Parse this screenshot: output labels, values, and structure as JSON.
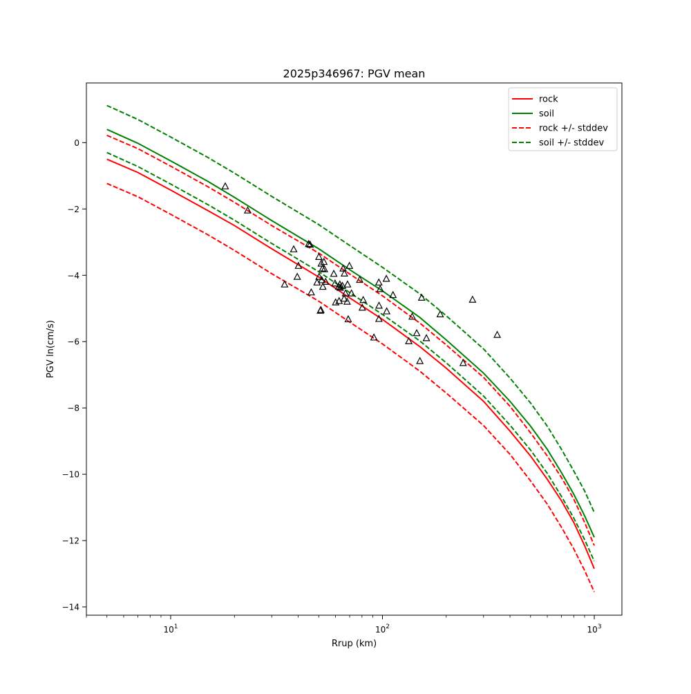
{
  "chart_data": {
    "type": "line",
    "title": "2025p346967: PGV mean",
    "xlabel": "Rrup (km)",
    "ylabel": "PGV ln(cm/s)",
    "xscale": "log",
    "xlim": [
      4,
      1350
    ],
    "ylim": [
      -14.25,
      1.8
    ],
    "grid": false,
    "legend_position": "top-right",
    "x_ticks": [
      {
        "value": 10,
        "base": "10",
        "exp": "1"
      },
      {
        "value": 100,
        "base": "10",
        "exp": "2"
      },
      {
        "value": 1000,
        "base": "10",
        "exp": "3"
      }
    ],
    "y_ticks": [
      0,
      -2,
      -4,
      -6,
      -8,
      -10,
      -12,
      -14
    ],
    "y_tick_labels": [
      "0",
      "−2",
      "−4",
      "−6",
      "−8",
      "−10",
      "−12",
      "−14"
    ],
    "curve_x": [
      5,
      7,
      10,
      15,
      20,
      30,
      50,
      70,
      100,
      150,
      200,
      300,
      400,
      500,
      600,
      700,
      800,
      900,
      1000
    ],
    "series": [
      {
        "name": "rock",
        "color": "#ff0000",
        "dash": "solid",
        "values": [
          -0.5,
          -0.9,
          -1.43,
          -2.05,
          -2.5,
          -3.2,
          -4.05,
          -4.68,
          -5.33,
          -6.15,
          -6.8,
          -7.8,
          -8.7,
          -9.45,
          -10.15,
          -10.8,
          -11.45,
          -12.15,
          -12.85
        ]
      },
      {
        "name": "soil",
        "color": "#008000",
        "dash": "solid",
        "values": [
          0.4,
          -0.02,
          -0.55,
          -1.17,
          -1.65,
          -2.35,
          -3.2,
          -3.83,
          -4.47,
          -5.27,
          -5.95,
          -6.95,
          -7.8,
          -8.55,
          -9.25,
          -9.95,
          -10.6,
          -11.25,
          -11.9
        ]
      },
      {
        "name": "rock +/- stddev",
        "color": "#ff0000",
        "dash": "dashed",
        "values": [
          0.22,
          -0.18,
          -0.71,
          -1.33,
          -1.8,
          -2.5,
          -3.33,
          -3.96,
          -4.62,
          -5.44,
          -6.1,
          -7.08,
          -7.95,
          -8.75,
          -9.45,
          -10.1,
          -10.75,
          -11.45,
          -12.15
        ]
      },
      {
        "name": "",
        "color": "#ff0000",
        "dash": "dashed",
        "values": [
          -1.23,
          -1.63,
          -2.16,
          -2.78,
          -3.25,
          -3.95,
          -4.78,
          -5.41,
          -6.07,
          -6.89,
          -7.55,
          -8.53,
          -9.4,
          -10.2,
          -10.9,
          -11.6,
          -12.25,
          -12.9,
          -13.55
        ]
      },
      {
        "name": "soil +/- stddev",
        "color": "#008000",
        "dash": "dashed",
        "values": [
          1.12,
          0.7,
          0.17,
          -0.45,
          -0.92,
          -1.62,
          -2.47,
          -3.1,
          -3.76,
          -4.56,
          -5.22,
          -6.22,
          -7.1,
          -7.85,
          -8.55,
          -9.25,
          -9.9,
          -10.5,
          -11.15
        ]
      },
      {
        "name": "",
        "color": "#008000",
        "dash": "dashed",
        "values": [
          -0.3,
          -0.72,
          -1.25,
          -1.87,
          -2.34,
          -3.04,
          -3.89,
          -4.52,
          -5.18,
          -5.98,
          -6.64,
          -7.64,
          -8.52,
          -9.27,
          -9.97,
          -10.67,
          -11.32,
          -11.97,
          -12.62
        ]
      }
    ],
    "observations": {
      "marker": "triangle",
      "points": [
        [
          18.1,
          -1.32
        ],
        [
          23.1,
          -2.05
        ],
        [
          34.5,
          -4.28
        ],
        [
          38.1,
          -3.22
        ],
        [
          39.6,
          -4.05
        ],
        [
          40.1,
          -3.72
        ],
        [
          44.8,
          -3.06
        ],
        [
          45.5,
          -3.08
        ],
        [
          46.1,
          -4.52
        ],
        [
          49.1,
          -4.22
        ],
        [
          50.1,
          -3.45
        ],
        [
          50.2,
          -4.05
        ],
        [
          50.9,
          -5.07
        ],
        [
          51.2,
          -5.05
        ],
        [
          51.4,
          -3.65
        ],
        [
          51.7,
          -4.15
        ],
        [
          52.1,
          -3.8
        ],
        [
          52.3,
          -4.35
        ],
        [
          52.9,
          -3.6
        ],
        [
          53.2,
          -3.82
        ],
        [
          53.9,
          -4.2
        ],
        [
          58.9,
          -3.96
        ],
        [
          59.7,
          -4.25
        ],
        [
          60.1,
          -4.82
        ],
        [
          62.1,
          -4.35
        ],
        [
          62.4,
          -4.78
        ],
        [
          62.9,
          -4.28
        ],
        [
          63.1,
          -4.38
        ],
        [
          64.7,
          -4.32
        ],
        [
          65.2,
          -3.8
        ],
        [
          65.9,
          -4.71
        ],
        [
          66.1,
          -3.95
        ],
        [
          66.9,
          -4.55
        ],
        [
          68.1,
          -4.8
        ],
        [
          68.4,
          -4.28
        ],
        [
          68.9,
          -5.33
        ],
        [
          69.8,
          -3.72
        ],
        [
          71.4,
          -4.55
        ],
        [
          78.1,
          -4.14
        ],
        [
          80.3,
          -4.98
        ],
        [
          81.1,
          -4.75
        ],
        [
          91.1,
          -5.88
        ],
        [
          96.1,
          -4.22
        ],
        [
          96.2,
          -5.32
        ],
        [
          96.3,
          -4.92
        ],
        [
          97.5,
          -4.42
        ],
        [
          104.3,
          -4.11
        ],
        [
          104.7,
          -5.09
        ],
        [
          112.1,
          -4.6
        ],
        [
          133.1,
          -5.99
        ],
        [
          138.1,
          -5.25
        ],
        [
          145.1,
          -5.75
        ],
        [
          150.2,
          -6.59
        ],
        [
          153.1,
          -4.68
        ],
        [
          161.2,
          -5.9
        ],
        [
          187.3,
          -5.18
        ],
        [
          240.3,
          -6.65
        ],
        [
          266.2,
          -4.74
        ],
        [
          348.1,
          -5.8
        ]
      ]
    }
  }
}
